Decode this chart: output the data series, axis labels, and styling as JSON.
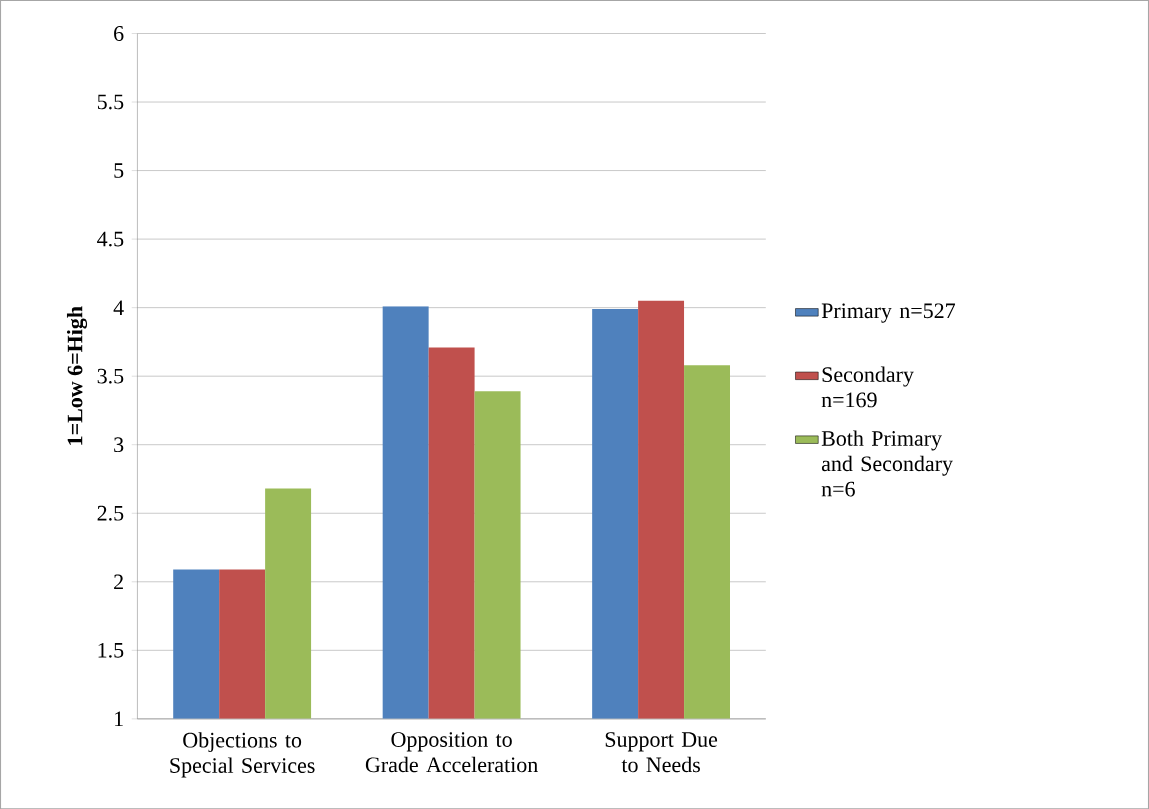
{
  "chart_data": {
    "type": "bar",
    "ylabel": "1=Low 6=High",
    "categories": [
      "Objections to Special Services",
      "Opposition to Grade Acceleration",
      "Support Due to Needs"
    ],
    "series": [
      {
        "name": "Primary n=527",
        "color": "#4f81bd",
        "values": [
          2.09,
          4.01,
          3.99
        ]
      },
      {
        "name": "Secondary n=169",
        "color": "#c0504d",
        "values": [
          2.09,
          3.71,
          4.05
        ]
      },
      {
        "name": "Both Primary and Secondary n=6",
        "color": "#9bbb59",
        "values": [
          2.68,
          3.39,
          3.58
        ]
      }
    ],
    "ylim": [
      1,
      6
    ],
    "yticks": [
      1,
      1.5,
      2,
      2.5,
      3,
      3.5,
      4,
      4.5,
      5,
      5.5,
      6
    ],
    "grid": "y",
    "legend": "right"
  }
}
